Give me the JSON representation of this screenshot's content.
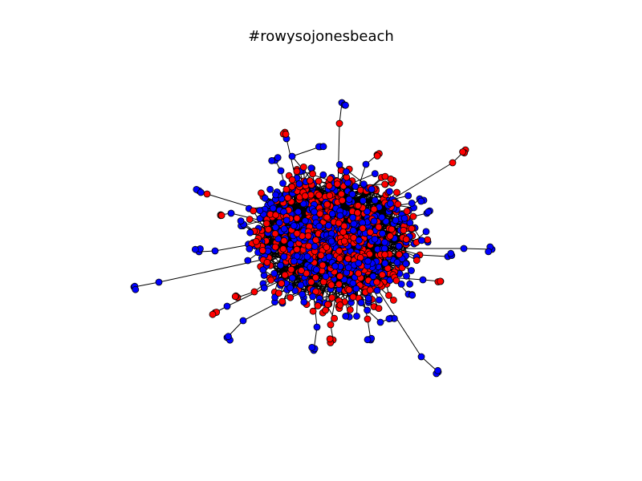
{
  "title": "#rowysojonesbeach",
  "colors": {
    "background": "#ffffff",
    "edge": "#000000",
    "node_stroke": "#000000",
    "node_red": "#ff0000",
    "node_blue": "#0000ff"
  },
  "legend": {
    "node_classes": [
      "red",
      "blue"
    ]
  }
}
